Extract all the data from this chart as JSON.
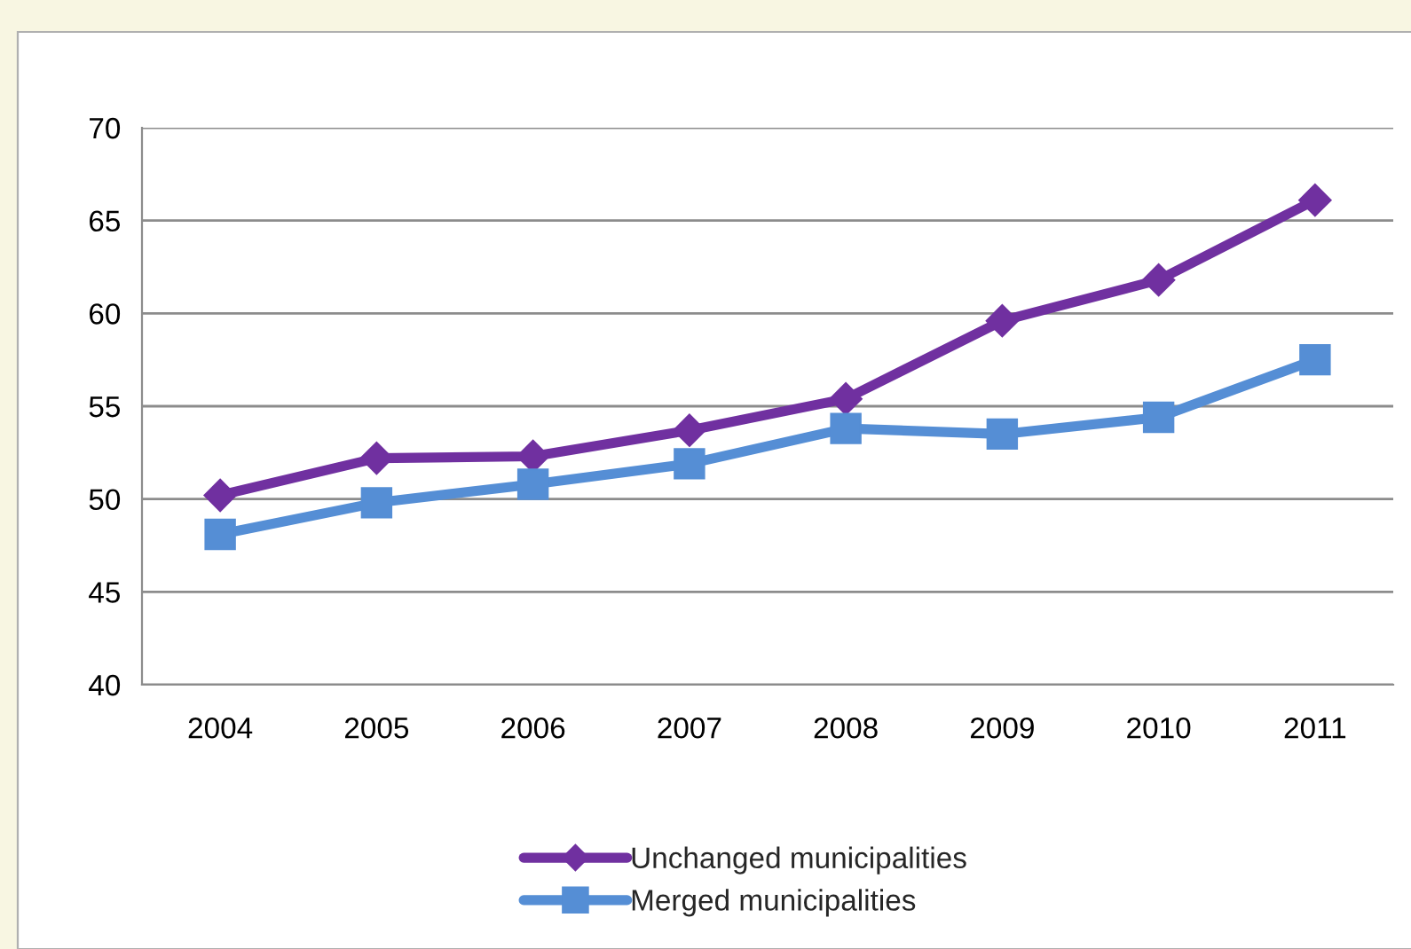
{
  "chart_data": {
    "type": "line",
    "categories": [
      "2004",
      "2005",
      "2006",
      "2007",
      "2008",
      "2009",
      "2010",
      "2011"
    ],
    "series": [
      {
        "name": "Unchanged municipalities",
        "color": "#7030a0",
        "marker": "diamond",
        "values": [
          50.2,
          52.2,
          52.3,
          53.7,
          55.4,
          59.6,
          61.8,
          66.1
        ]
      },
      {
        "name": "Merged municipalities",
        "color": "#558ed5",
        "marker": "square",
        "values": [
          48.1,
          49.8,
          50.8,
          51.9,
          53.8,
          53.5,
          54.4,
          57.5
        ]
      }
    ],
    "ylim": [
      40,
      70
    ],
    "yticks": [
      40,
      45,
      50,
      55,
      60,
      65,
      70
    ],
    "grid": "y",
    "legend": "bottom",
    "line_style": "solid"
  }
}
